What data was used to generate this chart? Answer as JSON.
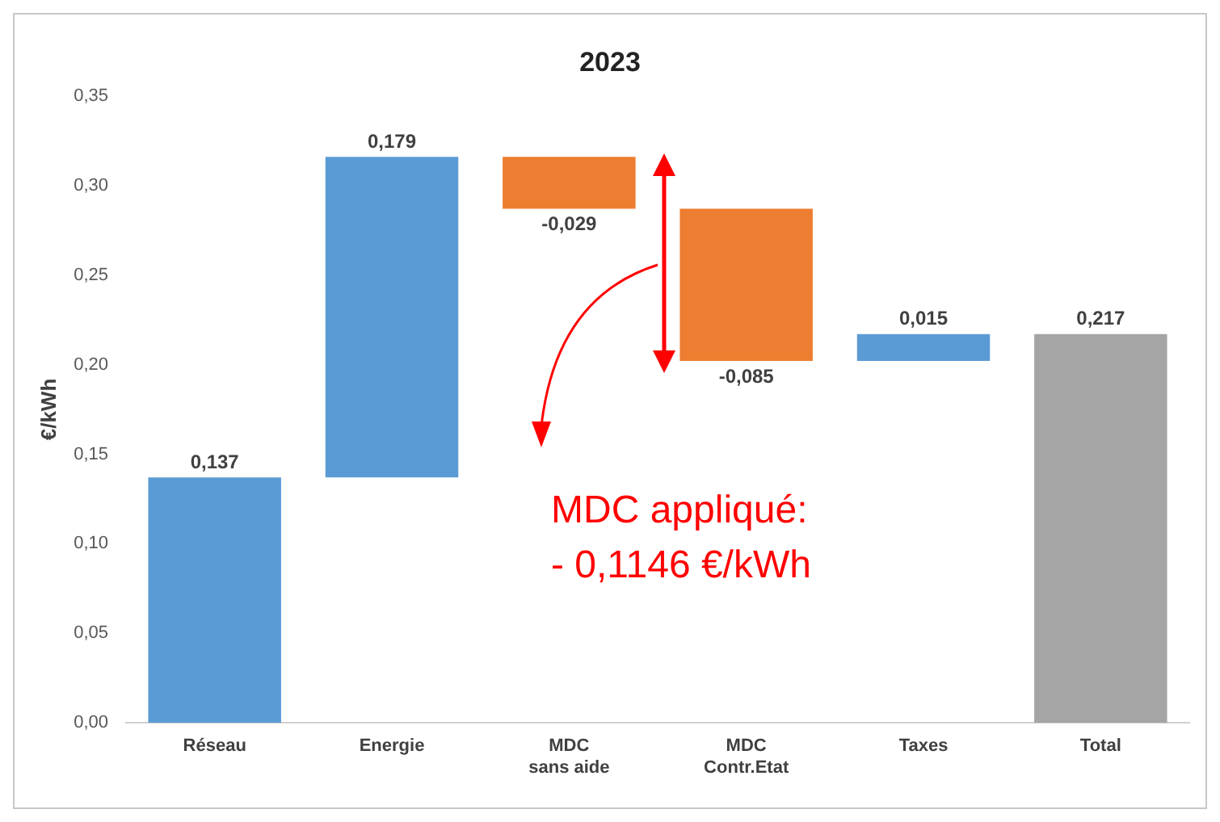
{
  "chart_data": {
    "type": "bar",
    "title": "2023",
    "ylabel": "€/kWh",
    "categories": [
      "Réseau",
      "Energie",
      "MDC\nsans aide",
      "MDC\nContr.Etat",
      "Taxes",
      "Total"
    ],
    "base": [
      0,
      0.137,
      0.316,
      0.287,
      0.202,
      0
    ],
    "values": [
      0.137,
      0.179,
      -0.029,
      -0.085,
      0.015,
      0.217
    ],
    "value_labels": [
      "0,137",
      "0,179",
      "-0,029",
      "-0,085",
      "0,015",
      "0,217"
    ],
    "colors": [
      "#5b9bd5",
      "#5b9bd5",
      "#ed7d31",
      "#ed7d31",
      "#5b9bd5",
      "#a5a5a5"
    ],
    "ylim": [
      0,
      0.35
    ],
    "yticks": [
      {
        "value": 0,
        "label": "0,00"
      },
      {
        "value": 0.05,
        "label": "0,05"
      },
      {
        "value": 0.1,
        "label": "0,10"
      },
      {
        "value": 0.15,
        "label": "0,15"
      },
      {
        "value": 0.2,
        "label": "0,20"
      },
      {
        "value": 0.25,
        "label": "0,25"
      },
      {
        "value": 0.3,
        "label": "0,30"
      },
      {
        "value": 0.35,
        "label": "0,35"
      }
    ],
    "grid": false,
    "legend": false,
    "annotations": [
      "MDC appliqué:\n- 0,1146 €/kWh"
    ]
  }
}
